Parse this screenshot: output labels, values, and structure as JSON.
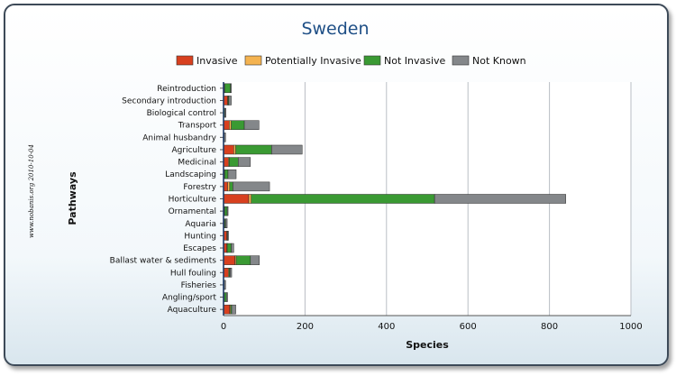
{
  "chart_data": {
    "type": "bar",
    "orientation": "horizontal",
    "stacked": true,
    "title": "Sweden",
    "xlabel": "Species",
    "ylabel": "Pathways",
    "xlim": [
      0,
      1000
    ],
    "xticks": [
      "0",
      "200",
      "400",
      "600",
      "800",
      "1000"
    ],
    "grid": true,
    "legend_position": "top",
    "watermark": "www.nobanis.org 2010-10-04",
    "categories": [
      "Reintroduction",
      "Secondary introduction",
      "Biological control",
      "Transport",
      "Animal husbandry",
      "Agriculture",
      "Medicinal",
      "Landscaping",
      "Forestry",
      "Horticulture",
      "Ornamental",
      "Aquaria",
      "Hunting",
      "Escapes",
      "Ballast water & sediments",
      "Hull fouling",
      "Fisheries",
      "Angling/sport",
      "Aquaculture"
    ],
    "series": [
      {
        "name": "Invasive",
        "color": "#d8401f",
        "values": [
          2,
          10,
          0,
          14,
          0,
          25,
          12,
          2,
          10,
          62,
          2,
          2,
          8,
          8,
          28,
          12,
          1,
          2,
          15
        ]
      },
      {
        "name": "Potentially Invasive",
        "color": "#f4b350",
        "values": [
          1,
          1,
          0,
          5,
          0,
          5,
          2,
          1,
          5,
          6,
          1,
          1,
          1,
          1,
          3,
          2,
          0,
          0,
          2
        ]
      },
      {
        "name": "Not Invasive",
        "color": "#3a9a33",
        "values": [
          14,
          2,
          3,
          32,
          2,
          88,
          22,
          8,
          8,
          450,
          6,
          2,
          1,
          10,
          35,
          2,
          1,
          5,
          3
        ]
      },
      {
        "name": "Not Known",
        "color": "#84878a",
        "values": [
          2,
          6,
          3,
          36,
          3,
          75,
          30,
          20,
          90,
          322,
          2,
          4,
          2,
          6,
          22,
          4,
          3,
          3,
          10
        ]
      }
    ]
  }
}
